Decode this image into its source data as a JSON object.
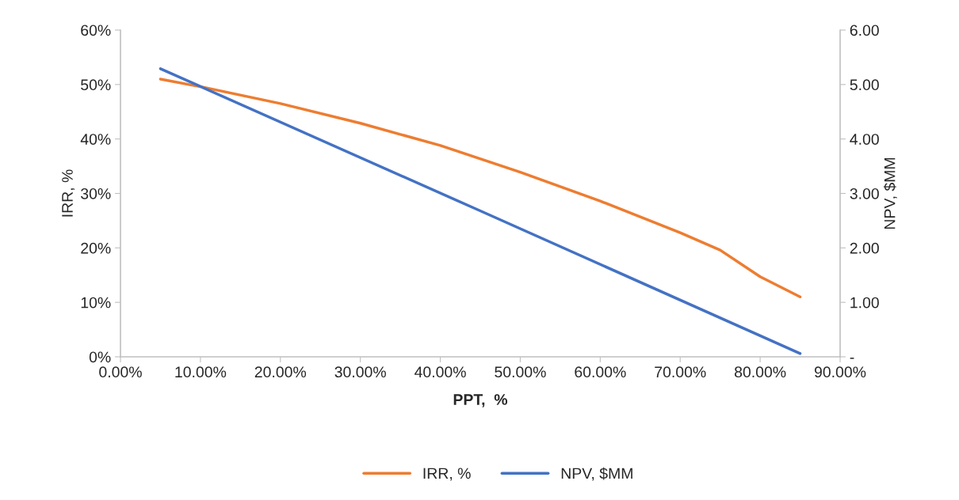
{
  "chart_data": {
    "type": "line",
    "xlabel": "PPT,  %",
    "ylabel": "IRR, %",
    "y2label": "NPV, $MM",
    "xlim": [
      0,
      90
    ],
    "xticks": [
      {
        "value": 0,
        "label": "0.00%"
      },
      {
        "value": 10,
        "label": "10.00%"
      },
      {
        "value": 20,
        "label": "20.00%"
      },
      {
        "value": 30,
        "label": "30.00%"
      },
      {
        "value": 40,
        "label": "40.00%"
      },
      {
        "value": 50,
        "label": "50.00%"
      },
      {
        "value": 60,
        "label": "60.00%"
      },
      {
        "value": 70,
        "label": "70.00%"
      },
      {
        "value": 80,
        "label": "80.00%"
      },
      {
        "value": 90,
        "label": "90.00%"
      }
    ],
    "ylim": [
      0,
      60
    ],
    "yticks": [
      {
        "value": 0,
        "label": "0%"
      },
      {
        "value": 10,
        "label": "10%"
      },
      {
        "value": 20,
        "label": "20%"
      },
      {
        "value": 30,
        "label": "30%"
      },
      {
        "value": 40,
        "label": "40%"
      },
      {
        "value": 50,
        "label": "50%"
      },
      {
        "value": 60,
        "label": "60%"
      }
    ],
    "y2lim": [
      0,
      6
    ],
    "y2ticks": [
      {
        "value": 0,
        "label": "-"
      },
      {
        "value": 1,
        "label": "1.00"
      },
      {
        "value": 2,
        "label": "2.00"
      },
      {
        "value": 3,
        "label": "3.00"
      },
      {
        "value": 4,
        "label": "4.00"
      },
      {
        "value": 5,
        "label": "5.00"
      },
      {
        "value": 6,
        "label": "6.00"
      }
    ],
    "x": [
      5,
      10,
      20,
      30,
      40,
      50,
      60,
      70,
      75,
      80,
      85
    ],
    "series": [
      {
        "name": "IRR, %",
        "color": "#ed7d31",
        "values": [
          51.0,
          49.6,
          46.5,
          42.9,
          38.8,
          33.9,
          28.6,
          22.8,
          19.6,
          14.7,
          11.0
        ]
      },
      {
        "name": "NPV, $MM",
        "color": "#4472c4",
        "axis": "y2",
        "x": [
          5,
          45,
          85
        ],
        "values": [
          5.29,
          2.68,
          0.06
        ]
      }
    ],
    "legend": "bottom",
    "grid": false,
    "marker": "none",
    "line_style": "solid"
  }
}
